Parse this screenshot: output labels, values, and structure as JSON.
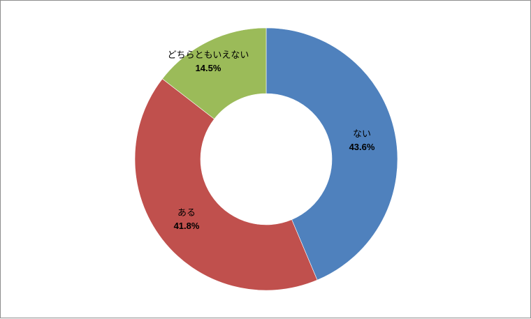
{
  "chart_data": {
    "type": "pie",
    "variant": "donut",
    "title": "",
    "categories": [
      "ない",
      "ある",
      "どちらともいえない"
    ],
    "values": [
      43.6,
      41.8,
      14.5
    ],
    "value_labels": [
      "43.6%",
      "41.8%",
      "14.5%"
    ],
    "colors": [
      "#4f81bd",
      "#c0504d",
      "#9bbb59"
    ],
    "start_angle_deg": 0,
    "direction": "clockwise",
    "legend": "none"
  }
}
